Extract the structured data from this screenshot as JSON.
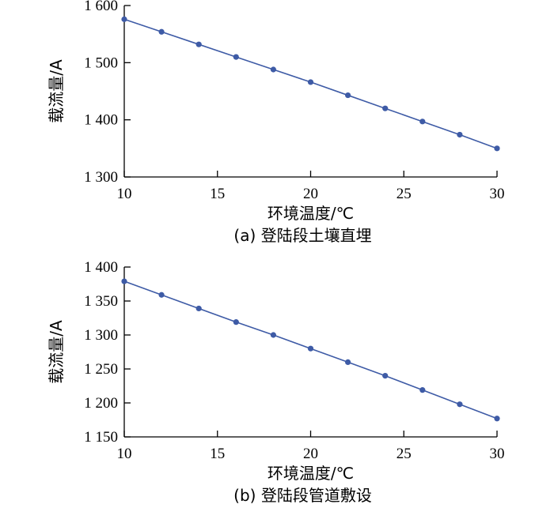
{
  "colors": {
    "series": "#3e5ba6",
    "axis": "#000000"
  },
  "chart_data": [
    {
      "type": "line",
      "caption": "(a)  登陆段土壤直埋",
      "xlabel": "环境温度/℃",
      "ylabel": "载流量/A",
      "xlim": [
        10,
        30
      ],
      "ylim": [
        1300,
        1600
      ],
      "xticks": [
        10,
        15,
        20,
        25,
        30
      ],
      "xtick_labels": [
        "10",
        "15",
        "20",
        "25",
        "30"
      ],
      "yticks": [
        1300,
        1400,
        1500,
        1600
      ],
      "ytick_labels": [
        "1 300",
        "1 400",
        "1 500",
        "1 600"
      ],
      "x": [
        10,
        12,
        14,
        16,
        18,
        20,
        22,
        24,
        26,
        28,
        30
      ],
      "series": [
        {
          "values": [
            1576,
            1554,
            1532,
            1510,
            1488,
            1466,
            1443,
            1420,
            1397,
            1374,
            1350
          ]
        }
      ]
    },
    {
      "type": "line",
      "caption": "(b)  登陆段管道敷设",
      "xlabel": "环境温度/℃",
      "ylabel": "载流量/A",
      "xlim": [
        10,
        30
      ],
      "ylim": [
        1150,
        1400
      ],
      "xticks": [
        10,
        15,
        20,
        25,
        30
      ],
      "xtick_labels": [
        "10",
        "15",
        "20",
        "25",
        "30"
      ],
      "yticks": [
        1150,
        1200,
        1250,
        1300,
        1350,
        1400
      ],
      "ytick_labels": [
        "1 150",
        "1 200",
        "1 250",
        "1 300",
        "1 350",
        "1 400"
      ],
      "x": [
        10,
        12,
        14,
        16,
        18,
        20,
        22,
        24,
        26,
        28,
        30
      ],
      "series": [
        {
          "values": [
            1379,
            1359,
            1339,
            1319,
            1300,
            1280,
            1260,
            1240,
            1219,
            1198,
            1177
          ]
        }
      ]
    }
  ]
}
